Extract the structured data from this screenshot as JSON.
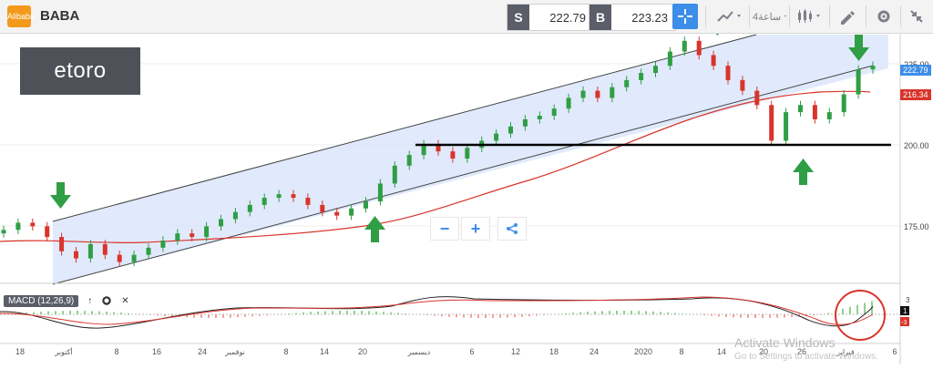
{
  "header": {
    "symbol": "BABA",
    "logo_text": "Alibaba",
    "sell_label": "S",
    "sell_price": "222.79",
    "buy_label": "B",
    "buy_price": "223.23",
    "timeframe": "4ساعة",
    "icons": [
      "crosshair-icon",
      "line-tool-icon",
      "candlestick-icon",
      "draw-tool-icon",
      "gear-icon",
      "collapse-icon"
    ]
  },
  "brand": {
    "watermark_logo": "etoro"
  },
  "controls": {
    "zoom_out": "−",
    "zoom_in": "+"
  },
  "indicator": {
    "name": "MACD (12,26,9)"
  },
  "y_axis": {
    "ticks": [
      "225.00",
      "200.00",
      "175.00"
    ]
  },
  "price_tags": {
    "current": "222.79",
    "ma": "216.34"
  },
  "macd_axis": {
    "ticks": [
      "3",
      "1",
      "-3"
    ]
  },
  "x_axis": {
    "ticks": [
      "18",
      "أكتوبر",
      "8",
      "16",
      "24",
      "نوفمبر",
      "8",
      "14",
      "20",
      "ديسمبر",
      "6",
      "12",
      "18",
      "24",
      "2020",
      "8",
      "14",
      "20",
      "26",
      "فبراير",
      "6"
    ]
  },
  "watermark": {
    "line1": "Activate Windows",
    "line2": "Go to Settings to activate Windows."
  },
  "colors": {
    "accent": "#3d8ee8",
    "bull": "#2f9e44",
    "bear": "#d9342b",
    "ma": "#d9342b",
    "channel": "#d6e3fb"
  },
  "chart_data": {
    "type": "candlestick",
    "y_range": [
      162,
      232
    ],
    "support_level": 200.0,
    "closes": [
      177,
      179,
      178,
      175,
      171,
      169,
      173,
      170,
      168,
      170,
      172,
      174,
      176,
      175,
      178,
      180,
      182,
      184,
      186,
      187,
      186,
      184,
      182,
      181,
      183,
      185,
      190,
      195,
      198,
      201,
      199,
      197,
      200,
      202,
      204,
      206,
      208,
      209,
      211,
      214,
      216,
      214,
      217,
      219,
      221,
      223,
      227,
      230,
      226,
      223,
      219,
      216,
      212,
      202,
      210,
      212,
      208,
      210,
      215,
      222,
      223
    ]
  }
}
